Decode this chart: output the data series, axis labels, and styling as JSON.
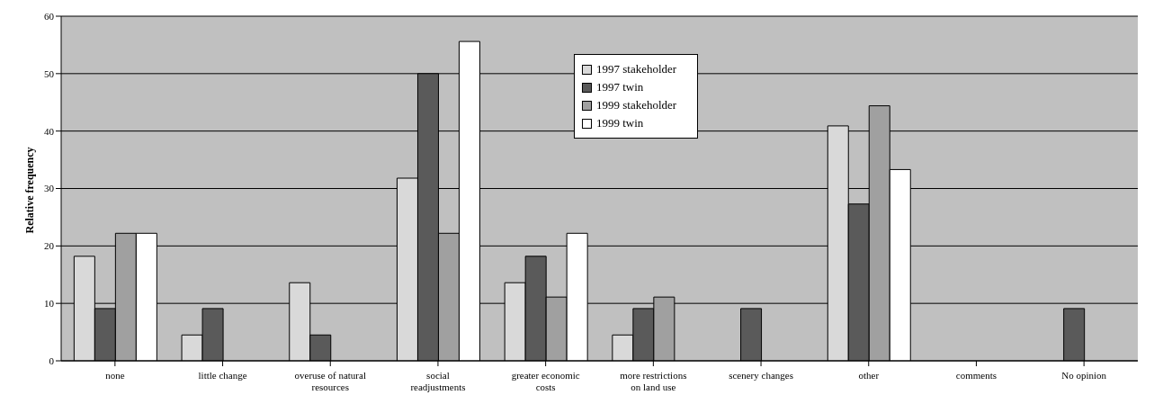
{
  "chart_data": {
    "type": "bar",
    "ylabel": "Relative frequency",
    "categories": [
      "none",
      "little change",
      "overuse of natural resources",
      "social readjustments",
      "greater economic costs",
      "more restrictions on land use",
      "scenery changes",
      "other",
      "comments",
      "No opinion"
    ],
    "series": [
      {
        "name": "1997 stakeholder",
        "color": "#d9d9d9",
        "values": [
          18.2,
          4.5,
          13.6,
          31.8,
          13.6,
          4.5,
          0,
          40.9,
          0,
          0
        ]
      },
      {
        "name": "1997 twin",
        "color": "#5a5a5a",
        "values": [
          9.1,
          9.1,
          4.5,
          50,
          18.2,
          9.1,
          9.1,
          27.3,
          0,
          9.1
        ]
      },
      {
        "name": "1999 stakeholder",
        "color": "#a0a0a0",
        "values": [
          22.2,
          0,
          0,
          22.2,
          11.1,
          11.1,
          0,
          44.4,
          0,
          0
        ]
      },
      {
        "name": "1999 twin",
        "color": "#ffffff",
        "values": [
          22.2,
          0,
          0,
          55.6,
          22.2,
          0,
          0,
          33.3,
          0,
          0
        ]
      }
    ],
    "ylim": [
      0,
      60
    ],
    "yticks": [
      0,
      10,
      20,
      30,
      40,
      50,
      60
    ],
    "grid": "y",
    "legend": "top"
  }
}
